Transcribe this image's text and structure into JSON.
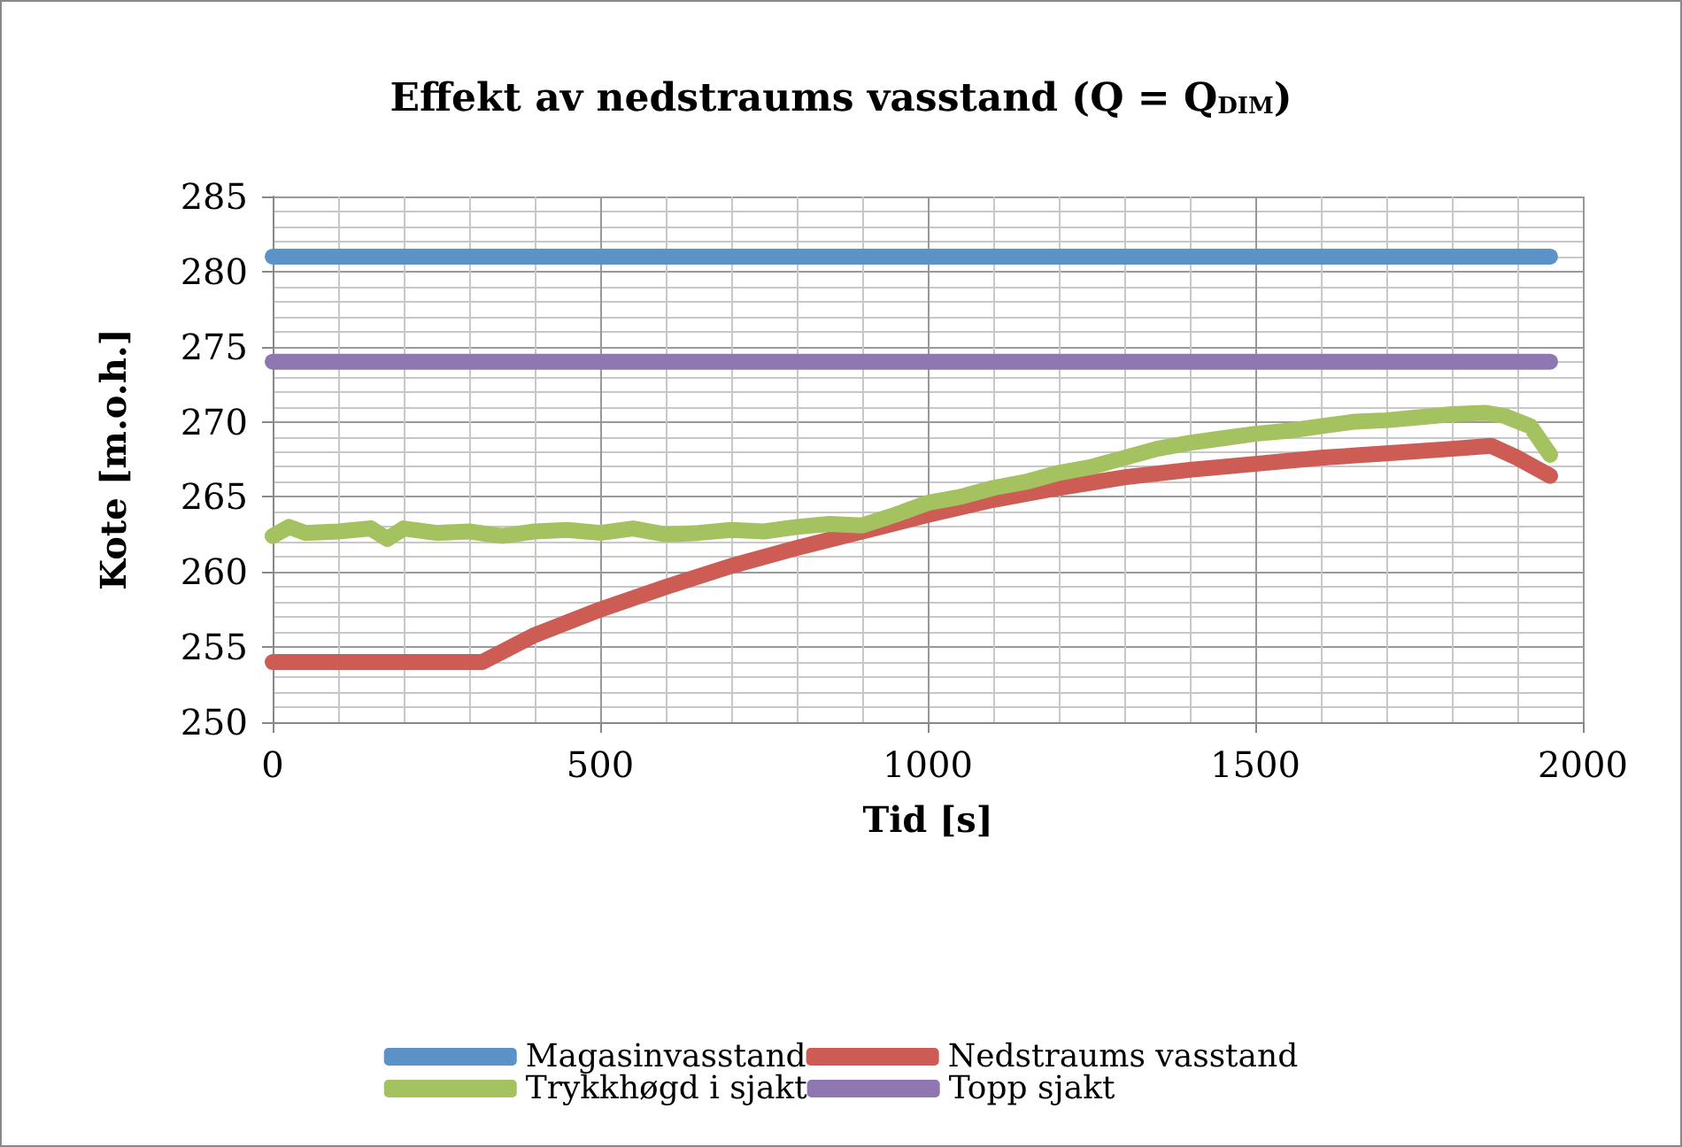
{
  "chart_data": {
    "type": "line",
    "title": "Effekt av nedstraums vasstand (Q = Q$_{DIM}$)",
    "xlabel": "Tid [s]",
    "ylabel": "Kote [m.o.h.]",
    "xlim": [
      0,
      2000
    ],
    "xticks": [
      0,
      500,
      1000,
      1500,
      2000
    ],
    "ylim": [
      250,
      285
    ],
    "yticks": [
      250,
      255,
      260,
      265,
      270,
      275,
      280,
      285
    ],
    "grid": true,
    "legend": "bottom",
    "marker": "none",
    "line_style": "solid",
    "series": [
      {
        "name": "Magasinvasstand",
        "color": "#5b93c8",
        "x": [
          0,
          1950
        ],
        "values": [
          281,
          281
        ]
      },
      {
        "name": "Nedstraums vasstand",
        "color": "#cd5c55",
        "x": [
          0,
          100,
          200,
          320,
          400,
          500,
          600,
          700,
          800,
          900,
          1000,
          1100,
          1200,
          1300,
          1400,
          1500,
          1600,
          1700,
          1800,
          1860,
          1900,
          1950
        ],
        "values": [
          254,
          254,
          254,
          254,
          255.8,
          257.5,
          259,
          260.4,
          261.6,
          262.7,
          263.8,
          264.8,
          265.6,
          266.3,
          266.8,
          267.2,
          267.6,
          267.9,
          268.2,
          268.4,
          267.6,
          266.4
        ]
      },
      {
        "name": "Trykkhøgd i sjakt",
        "color": "#a5c261",
        "x": [
          0,
          25,
          50,
          100,
          150,
          175,
          200,
          250,
          300,
          350,
          400,
          450,
          500,
          550,
          600,
          650,
          700,
          750,
          800,
          850,
          900,
          950,
          1000,
          1050,
          1100,
          1150,
          1200,
          1250,
          1300,
          1350,
          1400,
          1450,
          1500,
          1550,
          1600,
          1650,
          1700,
          1750,
          1800,
          1850,
          1880,
          1920,
          1950
        ],
        "values": [
          262.4,
          263,
          262.6,
          262.7,
          262.9,
          262.2,
          262.9,
          262.6,
          262.7,
          262.4,
          262.7,
          262.8,
          262.6,
          262.9,
          262.5,
          262.6,
          262.8,
          262.7,
          263,
          263.2,
          263.1,
          263.8,
          264.6,
          265,
          265.6,
          266,
          266.6,
          267,
          267.6,
          268.2,
          268.6,
          268.9,
          269.2,
          269.4,
          269.7,
          270,
          270.1,
          270.3,
          270.5,
          270.6,
          270.4,
          269.7,
          267.8
        ]
      },
      {
        "name": "Topp sjakt",
        "color": "#8e76b0",
        "x": [
          0,
          1950
        ],
        "values": [
          274,
          274
        ]
      }
    ]
  }
}
